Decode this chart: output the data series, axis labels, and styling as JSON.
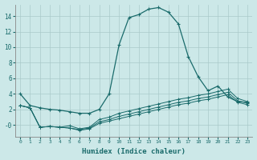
{
  "xlabel": "Humidex (Indice chaleur)",
  "ylabel": "",
  "bg_color": "#cce8e8",
  "line_color": "#1a6b6b",
  "grid_color": "#aacaca",
  "xlim": [
    -0.5,
    23.5
  ],
  "ylim": [
    -1.5,
    15.5
  ],
  "x_ticks": [
    0,
    1,
    2,
    3,
    4,
    5,
    6,
    7,
    8,
    9,
    10,
    11,
    12,
    13,
    14,
    15,
    16,
    17,
    18,
    19,
    20,
    21,
    22,
    23
  ],
  "y_ticks": [
    0,
    2,
    4,
    6,
    8,
    10,
    12,
    14
  ],
  "y_tick_labels": [
    "-0",
    "2",
    "4",
    "6",
    "8",
    "10",
    "12",
    "14"
  ],
  "line1_x": [
    0,
    1,
    2,
    3,
    4,
    5,
    6,
    7,
    8,
    9,
    10,
    11,
    12,
    13,
    14,
    15,
    16,
    17,
    18,
    19,
    20,
    21,
    22,
    23
  ],
  "line1_y": [
    4.0,
    2.5,
    2.2,
    2.0,
    1.9,
    1.7,
    1.5,
    1.5,
    2.0,
    4.0,
    10.3,
    13.8,
    14.2,
    14.9,
    15.1,
    14.5,
    13.0,
    8.8,
    6.2,
    4.4,
    5.0,
    3.6,
    3.0,
    2.9
  ],
  "line2_x": [
    0,
    1,
    2,
    3,
    4,
    5,
    6,
    7,
    8,
    9,
    10,
    11,
    12,
    13,
    14,
    15,
    16,
    17,
    18,
    19,
    20,
    21,
    22,
    23
  ],
  "line2_y": [
    2.5,
    2.2,
    -0.3,
    -0.2,
    -0.3,
    -0.1,
    -0.5,
    -0.3,
    0.7,
    1.0,
    1.5,
    1.8,
    2.1,
    2.4,
    2.7,
    3.0,
    3.3,
    3.5,
    3.8,
    4.0,
    4.3,
    4.6,
    3.4,
    3.0
  ],
  "line3_x": [
    0,
    1,
    2,
    3,
    4,
    5,
    6,
    7,
    8,
    9,
    10,
    11,
    12,
    13,
    14,
    15,
    16,
    17,
    18,
    19,
    20,
    21,
    22,
    23
  ],
  "line3_y": [
    2.5,
    2.2,
    -0.3,
    -0.2,
    -0.3,
    -0.4,
    -0.6,
    -0.4,
    0.4,
    0.7,
    1.1,
    1.4,
    1.7,
    2.0,
    2.3,
    2.6,
    2.9,
    3.1,
    3.4,
    3.6,
    3.9,
    4.2,
    3.1,
    2.8
  ],
  "line4_x": [
    0,
    1,
    2,
    3,
    4,
    5,
    6,
    7,
    8,
    9,
    10,
    11,
    12,
    13,
    14,
    15,
    16,
    17,
    18,
    19,
    20,
    21,
    22,
    23
  ],
  "line4_y": [
    2.5,
    2.2,
    -0.3,
    -0.2,
    -0.3,
    -0.4,
    -0.7,
    -0.5,
    0.2,
    0.5,
    0.8,
    1.1,
    1.4,
    1.7,
    2.0,
    2.3,
    2.6,
    2.8,
    3.1,
    3.3,
    3.6,
    3.9,
    2.9,
    2.6
  ]
}
